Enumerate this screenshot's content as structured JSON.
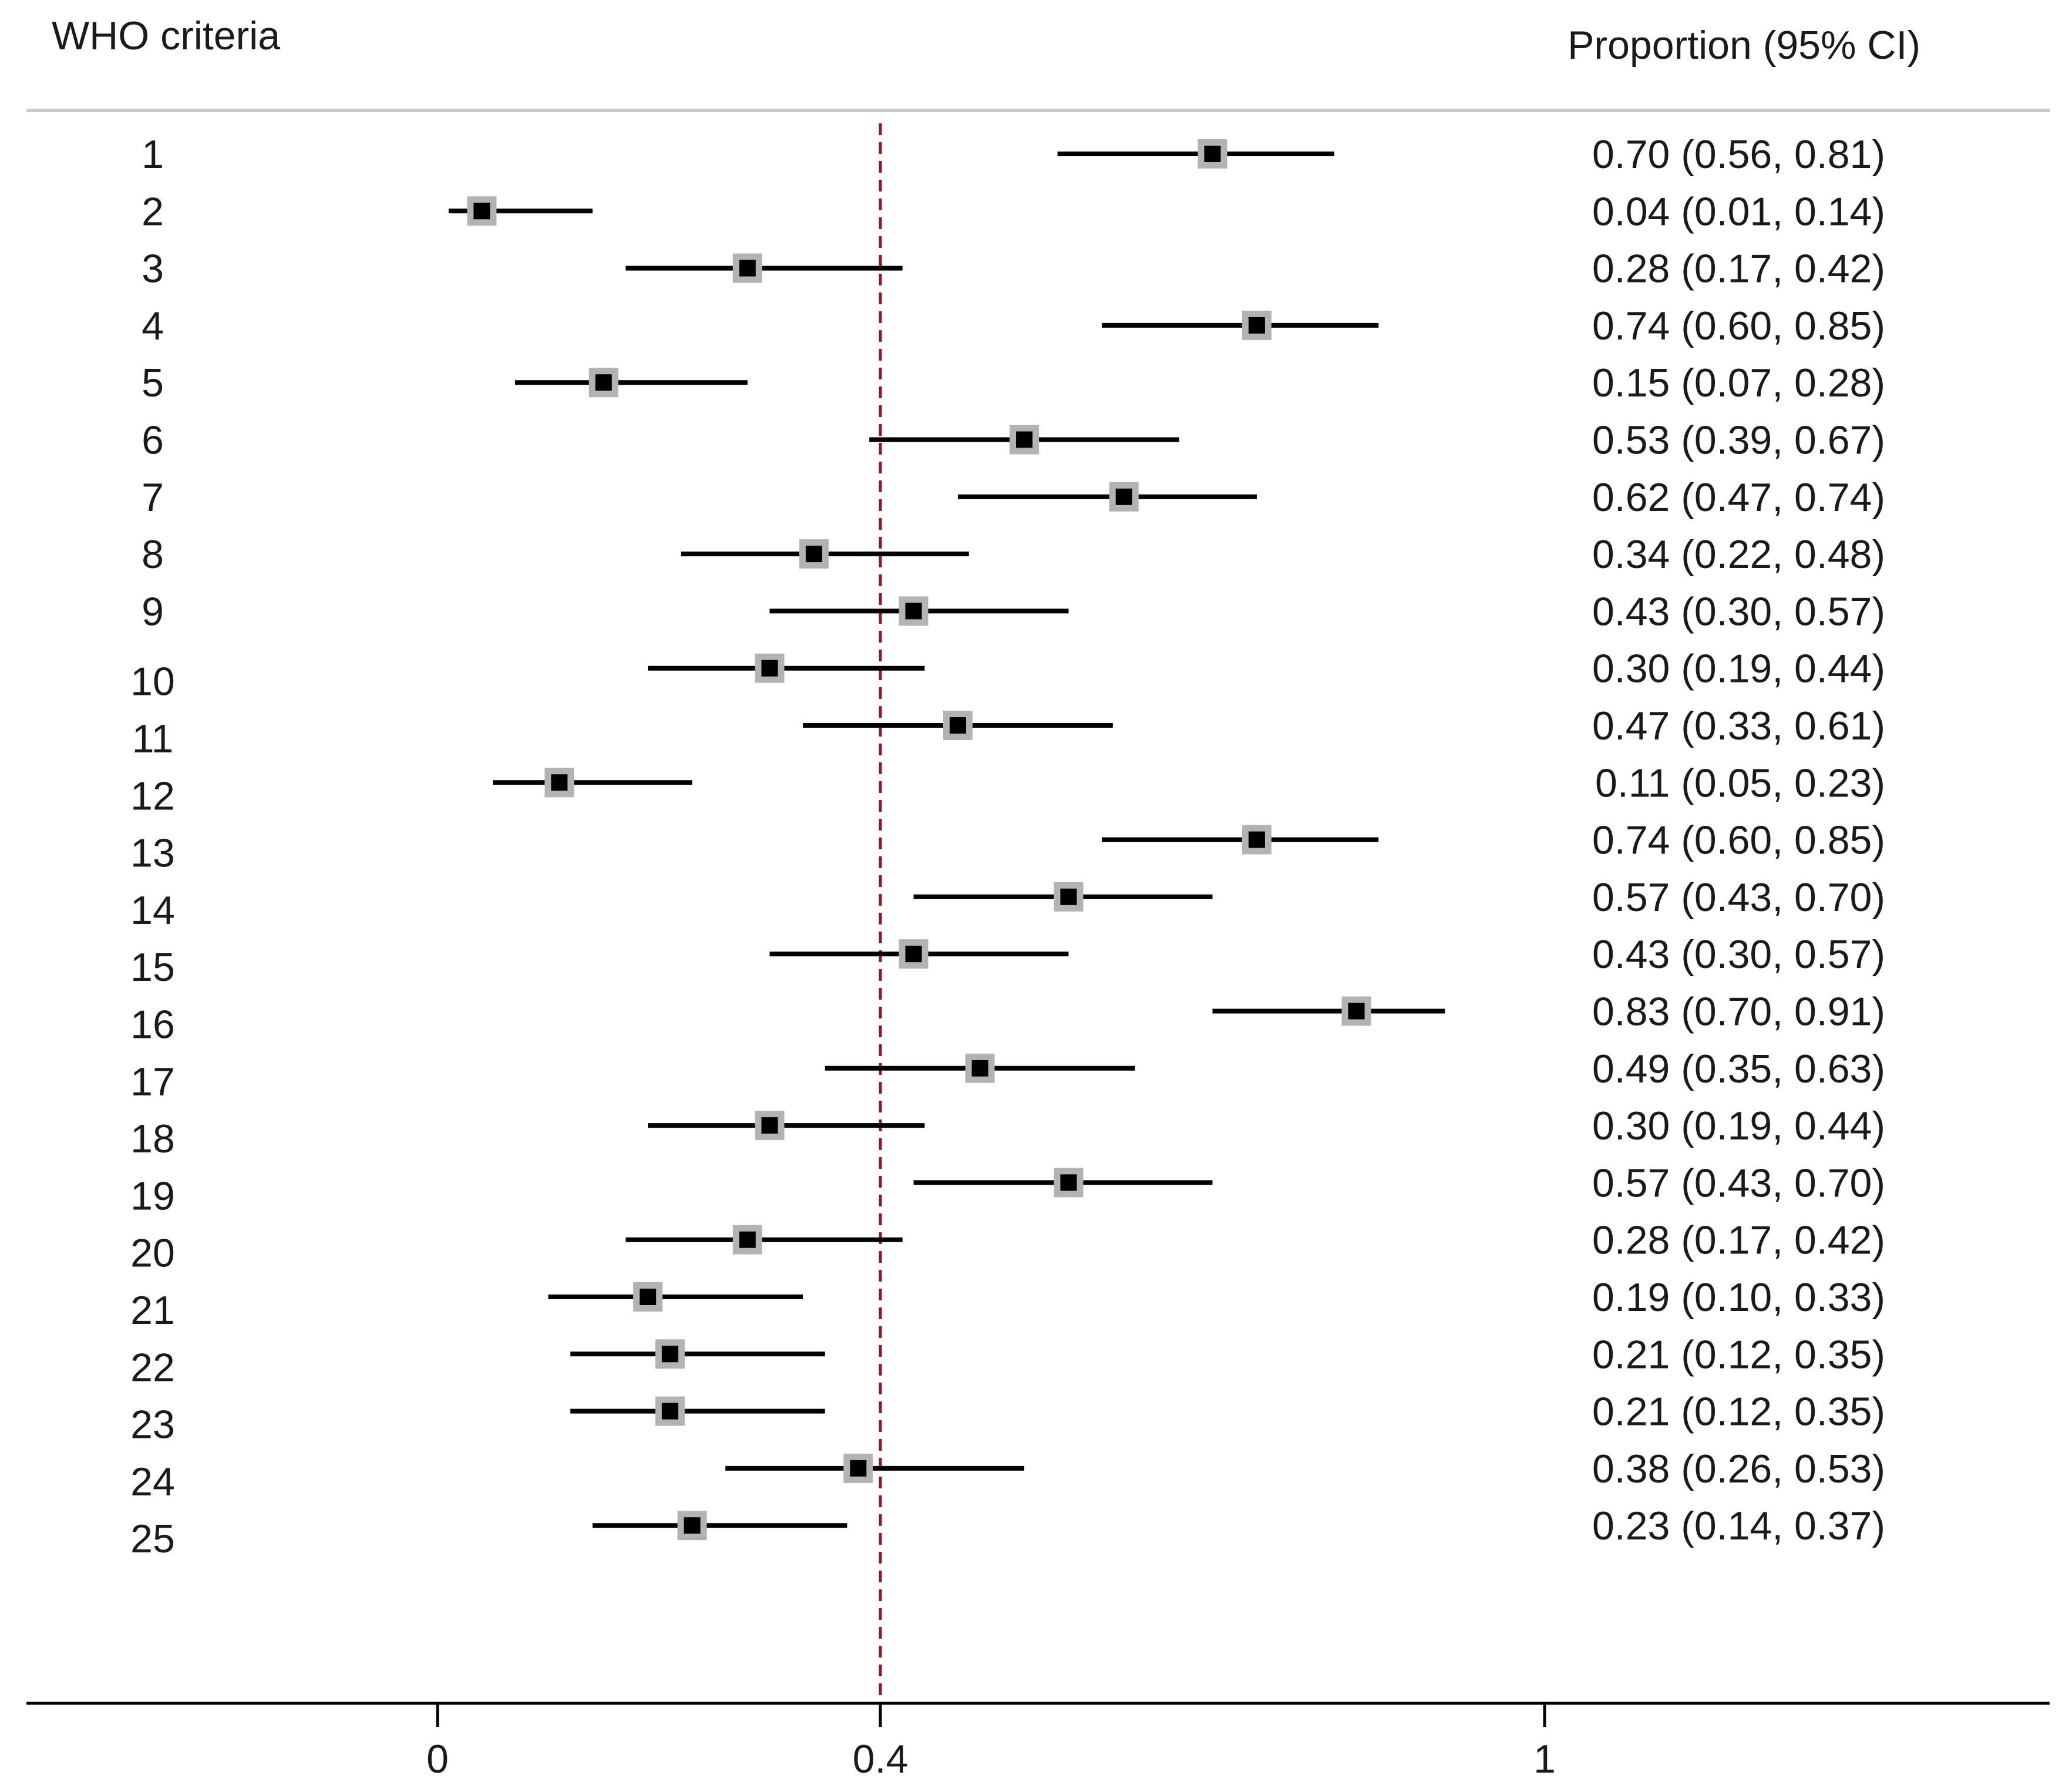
{
  "chart_data": {
    "type": "forest",
    "left_header": "WHO criteria",
    "right_header": "Proportion (95% CI)",
    "reference_line": 0.4,
    "xlim": [
      -0.37,
      1.45
    ],
    "x_ticks": [
      {
        "value": 0,
        "label": "0"
      },
      {
        "value": 0.4,
        "label": "0.4"
      },
      {
        "value": 1,
        "label": "1"
      }
    ],
    "rows": [
      {
        "label": "1",
        "estimate": 0.7,
        "lower": 0.56,
        "upper": 0.81,
        "text": "0.70 (0.56, 0.81)"
      },
      {
        "label": "2",
        "estimate": 0.04,
        "lower": 0.01,
        "upper": 0.14,
        "text": "0.04 (0.01, 0.14)"
      },
      {
        "label": "3",
        "estimate": 0.28,
        "lower": 0.17,
        "upper": 0.42,
        "text": "0.28 (0.17, 0.42)"
      },
      {
        "label": "4",
        "estimate": 0.74,
        "lower": 0.6,
        "upper": 0.85,
        "text": "0.74 (0.60, 0.85)"
      },
      {
        "label": "5",
        "estimate": 0.15,
        "lower": 0.07,
        "upper": 0.28,
        "text": "0.15 (0.07, 0.28)"
      },
      {
        "label": "6",
        "estimate": 0.53,
        "lower": 0.39,
        "upper": 0.67,
        "text": "0.53 (0.39, 0.67)"
      },
      {
        "label": "7",
        "estimate": 0.62,
        "lower": 0.47,
        "upper": 0.74,
        "text": "0.62 (0.47, 0.74)"
      },
      {
        "label": "8",
        "estimate": 0.34,
        "lower": 0.22,
        "upper": 0.48,
        "text": "0.34 (0.22, 0.48)"
      },
      {
        "label": "9",
        "estimate": 0.43,
        "lower": 0.3,
        "upper": 0.57,
        "text": "0.43 (0.30, 0.57)"
      },
      {
        "label": "10",
        "estimate": 0.3,
        "lower": 0.19,
        "upper": 0.44,
        "text": "0.30 (0.19, 0.44)"
      },
      {
        "label": "11",
        "estimate": 0.47,
        "lower": 0.33,
        "upper": 0.61,
        "text": "0.47 (0.33, 0.61)"
      },
      {
        "label": "12",
        "estimate": 0.11,
        "lower": 0.05,
        "upper": 0.23,
        "text": "0.11 (0.05, 0.23)"
      },
      {
        "label": "13",
        "estimate": 0.74,
        "lower": 0.6,
        "upper": 0.85,
        "text": "0.74 (0.60, 0.85)"
      },
      {
        "label": "14",
        "estimate": 0.57,
        "lower": 0.43,
        "upper": 0.7,
        "text": "0.57 (0.43, 0.70)"
      },
      {
        "label": "15",
        "estimate": 0.43,
        "lower": 0.3,
        "upper": 0.57,
        "text": "0.43 (0.30, 0.57)"
      },
      {
        "label": "16",
        "estimate": 0.83,
        "lower": 0.7,
        "upper": 0.91,
        "text": "0.83 (0.70, 0.91)"
      },
      {
        "label": "17",
        "estimate": 0.49,
        "lower": 0.35,
        "upper": 0.63,
        "text": "0.49 (0.35, 0.63)"
      },
      {
        "label": "18",
        "estimate": 0.3,
        "lower": 0.19,
        "upper": 0.44,
        "text": "0.30 (0.19, 0.44)"
      },
      {
        "label": "19",
        "estimate": 0.57,
        "lower": 0.43,
        "upper": 0.7,
        "text": "0.57 (0.43, 0.70)"
      },
      {
        "label": "20",
        "estimate": 0.28,
        "lower": 0.17,
        "upper": 0.42,
        "text": "0.28 (0.17, 0.42)"
      },
      {
        "label": "21",
        "estimate": 0.19,
        "lower": 0.1,
        "upper": 0.33,
        "text": "0.19 (0.10, 0.33)"
      },
      {
        "label": "22",
        "estimate": 0.21,
        "lower": 0.12,
        "upper": 0.35,
        "text": "0.21 (0.12, 0.35)"
      },
      {
        "label": "23",
        "estimate": 0.21,
        "lower": 0.12,
        "upper": 0.35,
        "text": "0.21 (0.12, 0.35)"
      },
      {
        "label": "24",
        "estimate": 0.38,
        "lower": 0.26,
        "upper": 0.53,
        "text": "0.38 (0.26, 0.53)"
      },
      {
        "label": "25",
        "estimate": 0.23,
        "lower": 0.14,
        "upper": 0.37,
        "text": "0.23 (0.14, 0.37)"
      }
    ],
    "colors": {
      "ci_line": "#000000",
      "marker": "#000000",
      "marker_halo": "#b3b3b3",
      "reference_line": "#8b1a1a",
      "header_rule": "#c8c8c8",
      "axis": "#000000"
    }
  }
}
